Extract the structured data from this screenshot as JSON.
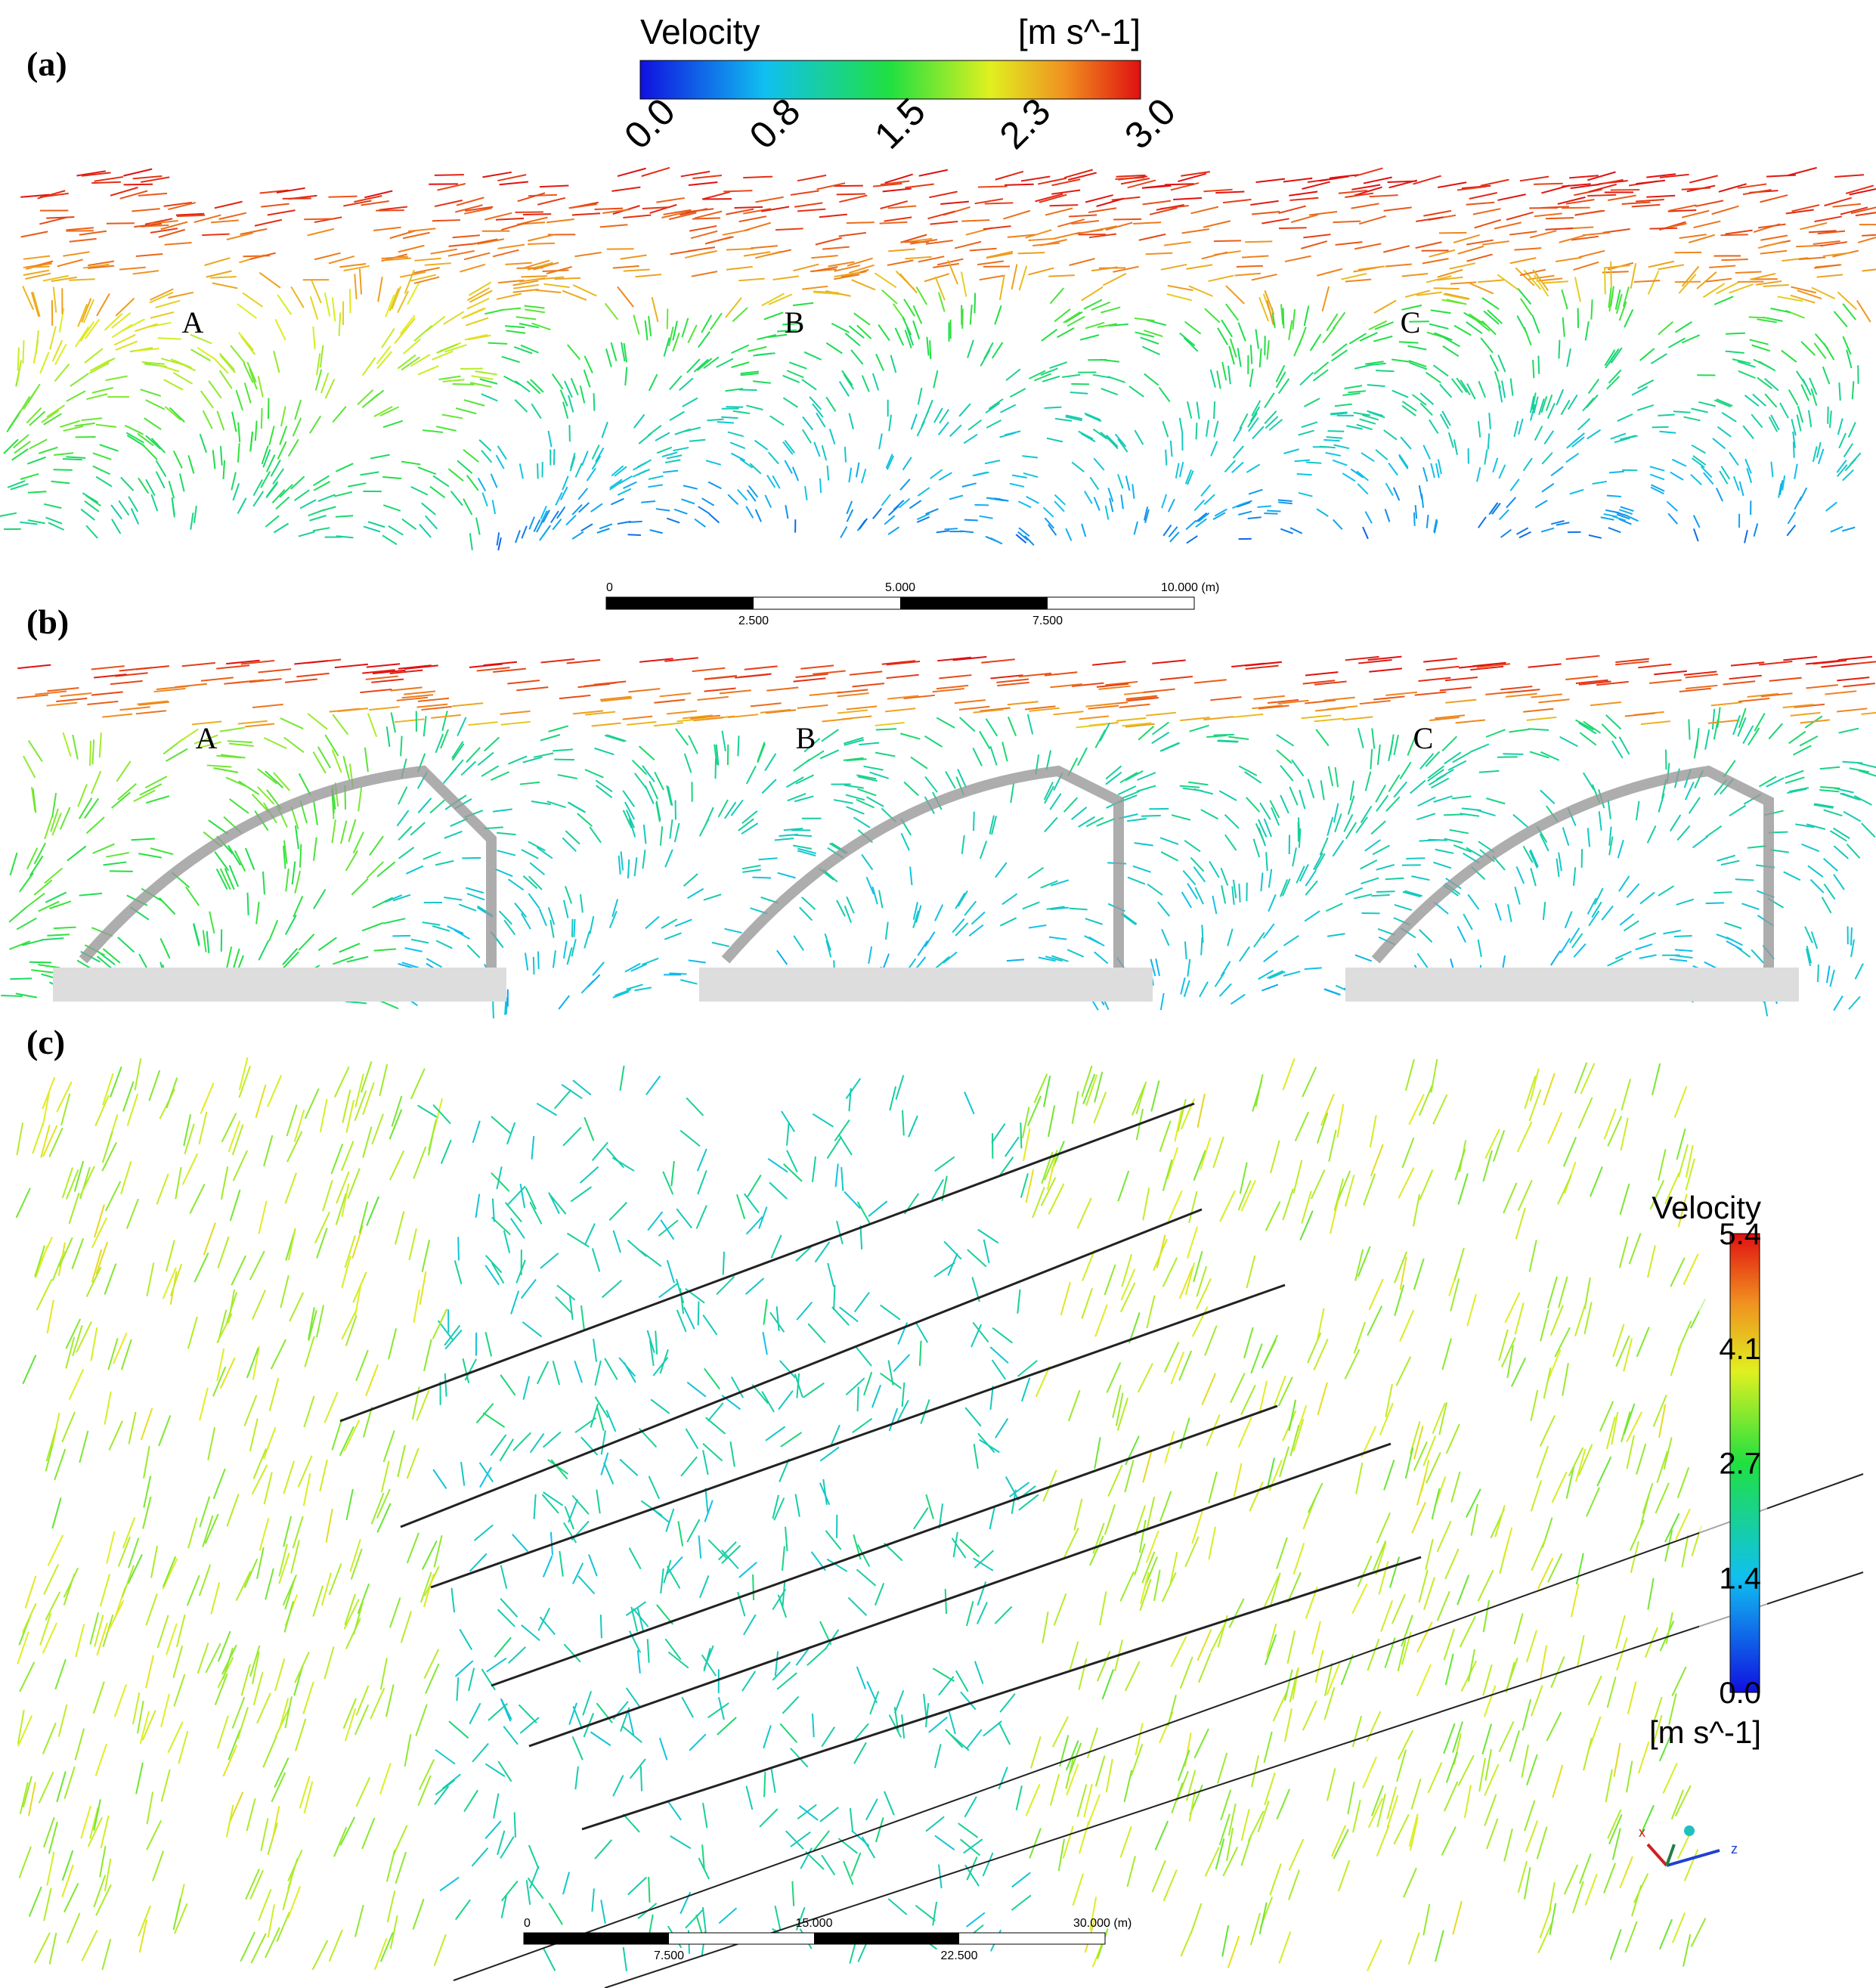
{
  "panels": [
    {
      "label": "(a)",
      "regions": [
        "A",
        "B",
        "C"
      ],
      "legend": {
        "title": "Velocity",
        "unit": "[m s^-1]",
        "ticks": [
          "0.0",
          "0.8",
          "1.5",
          "2.3",
          "3.0"
        ]
      },
      "scale_bar": {
        "top": [
          "0",
          "5.000",
          "10.000 (m)"
        ],
        "bottom": [
          "2.500",
          "7.500"
        ]
      }
    },
    {
      "label": "(b)",
      "regions": [
        "A",
        "B",
        "C"
      ]
    },
    {
      "label": "(c)",
      "legend": {
        "title": "Velocity",
        "unit": "[m s^-1]",
        "ticks": [
          "5.4",
          "4.1",
          "2.7",
          "1.4",
          "0.0"
        ]
      },
      "scale_bar": {
        "top": [
          "0",
          "15.000",
          "30.000 (m)"
        ],
        "bottom": [
          "7.500",
          "22.500"
        ]
      },
      "axes": [
        "x",
        "z"
      ]
    }
  ]
}
